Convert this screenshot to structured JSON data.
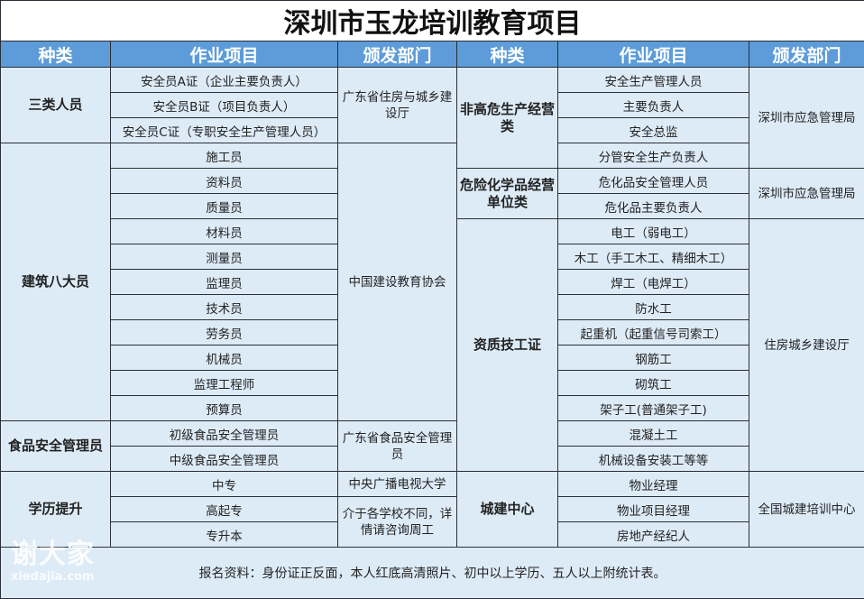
{
  "title": "深圳市玉龙培训教育项目",
  "headers": [
    "种类",
    "作业项目",
    "颁发部门",
    "种类",
    "作业项目",
    "颁发部门"
  ],
  "left": {
    "groups": [
      {
        "category": "三类人员",
        "department": "广东省住房与城乡建设厅",
        "items": [
          "安全员A证（企业主要负责人）",
          "安全员B证（项目负责人）",
          "安全员C证（专职安全生产管理人员）"
        ]
      },
      {
        "category": "建筑八大员",
        "department": "中国建设教育协会",
        "items": [
          "施工员",
          "资料员",
          "质量员",
          "材料员",
          "测量员",
          "监理员",
          "技术员",
          "劳务员",
          "机械员",
          "监理工程师",
          "预算员"
        ]
      },
      {
        "category": "食品安全管理员",
        "department": "广东省食品安全管理员",
        "items": [
          "初级食品安全管理员",
          "中级食品安全管理员"
        ]
      },
      {
        "category": "学历提升",
        "departments": [
          "中央广播电视大学",
          "介于各学校不同，详情请咨询周工"
        ],
        "items": [
          "中专",
          "高起专",
          "专升本"
        ]
      }
    ]
  },
  "right": {
    "groups": [
      {
        "category": "非高危生产经营类",
        "department": "深圳市应急管理局",
        "items": [
          "安全生产管理人员",
          "主要负责人",
          "安全总监",
          "分管安全生产负责人"
        ]
      },
      {
        "category": "危险化学品经营单位类",
        "department": "深圳市应急管理局",
        "items": [
          "危化品安全管理人员",
          "危化品主要负责人"
        ]
      },
      {
        "category": "资质技工证",
        "department": "住房城乡建设厅",
        "items": [
          "电工（弱电工）",
          "木工（手工木工、精细木工）",
          "焊工（电焊工）",
          "防水工",
          "起重机（起重信号司索工）",
          "钢筋工",
          "砌筑工",
          "架子工(普通架子工)",
          "混凝土工",
          "机械设备安装工等等"
        ]
      },
      {
        "category": "城建中心",
        "department": "全国城建培训中心",
        "items": [
          "物业经理",
          "物业项目经理",
          "房地产经纪人"
        ]
      }
    ]
  },
  "footer": "报名资料：身份证正反面，本人红底高清照片、初中以上学历、五人以上附统计表。",
  "watermark": {
    "text": "谢大家",
    "domain": "xiedajia.com"
  },
  "colors": {
    "header_bg": "#5d9cd8",
    "body_bg": "#ddebf7",
    "border": "#2a2f38"
  }
}
